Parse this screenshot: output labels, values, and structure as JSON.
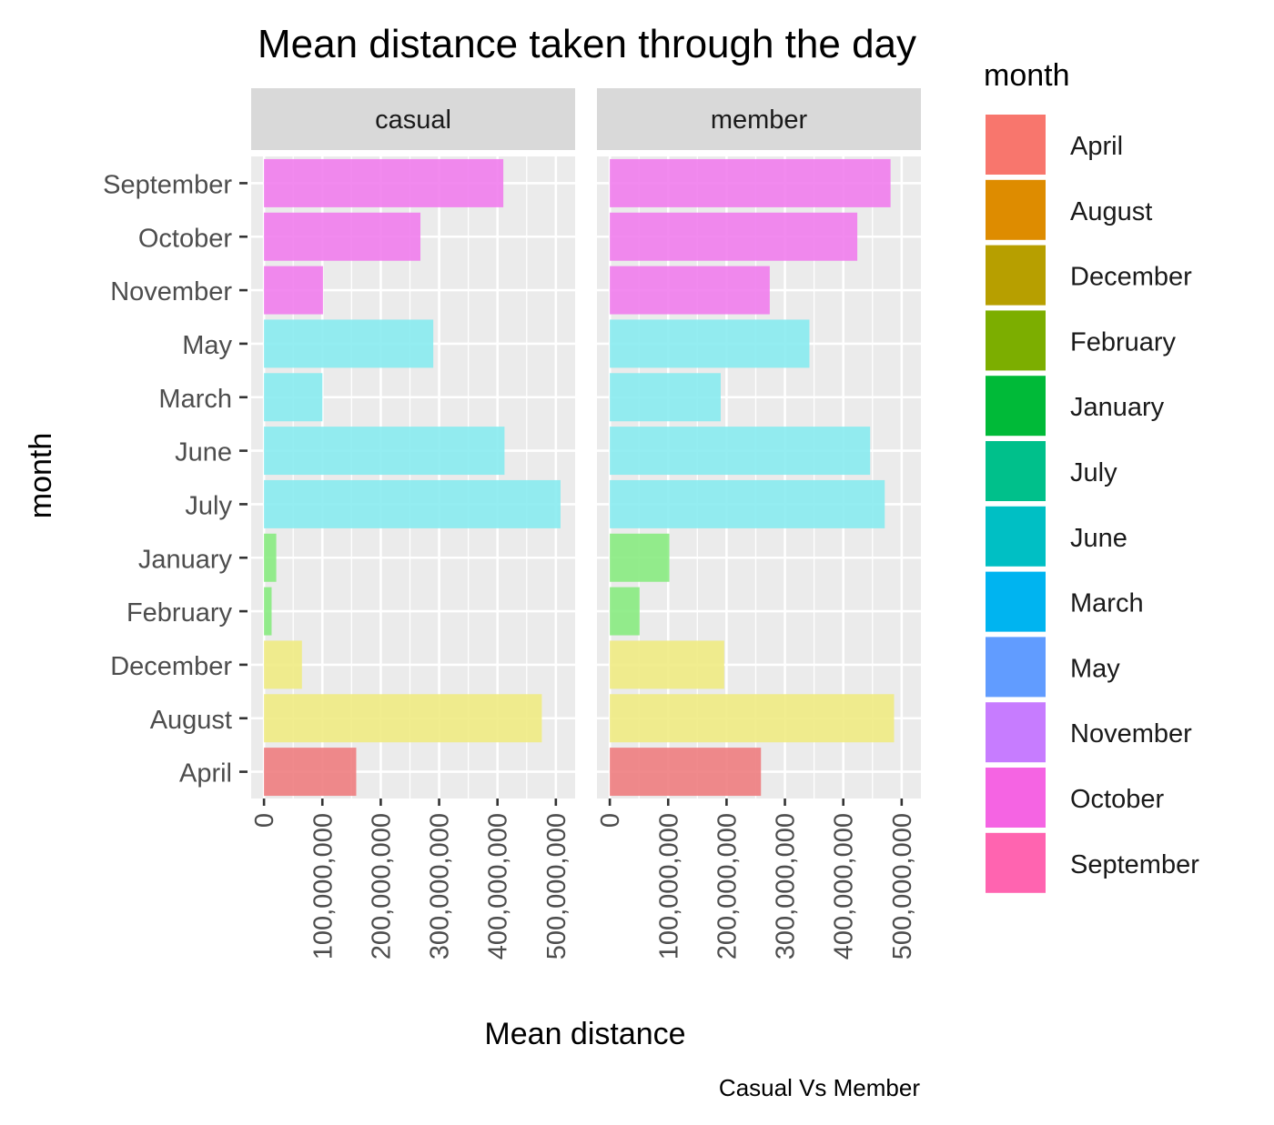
{
  "chart_data": {
    "type": "bar",
    "orientation": "horizontal",
    "title": "Mean distance taken through the day",
    "xlabel": "Mean distance",
    "ylabel": "month",
    "caption": "Casual Vs Member",
    "xlim": [
      -22000000,
      533000000
    ],
    "x_ticks": [
      0,
      100000000,
      200000000,
      300000000,
      400000000,
      500000000
    ],
    "x_tick_labels": [
      "0",
      "100,000,000",
      "200,000,000",
      "300,000,000",
      "400,000,000",
      "500,000,000"
    ],
    "grid": true,
    "legend": {
      "title": "month",
      "position": "right",
      "entries": [
        {
          "label": "April",
          "color": "#F8766D"
        },
        {
          "label": "August",
          "color": "#DE8C00"
        },
        {
          "label": "December",
          "color": "#B79F00"
        },
        {
          "label": "February",
          "color": "#7CAE00"
        },
        {
          "label": "January",
          "color": "#00BA38"
        },
        {
          "label": "July",
          "color": "#00C08B"
        },
        {
          "label": "June",
          "color": "#00BFC4"
        },
        {
          "label": "March",
          "color": "#00B4F0"
        },
        {
          "label": "May",
          "color": "#619CFF"
        },
        {
          "label": "November",
          "color": "#C77CFF"
        },
        {
          "label": "October",
          "color": "#F564E3"
        },
        {
          "label": "September",
          "color": "#FF64B0"
        }
      ]
    },
    "categories": [
      "September",
      "October",
      "November",
      "May",
      "March",
      "June",
      "July",
      "January",
      "February",
      "December",
      "August",
      "April"
    ],
    "bar_colors": [
      "#F07AED",
      "#F07AED",
      "#F07AED",
      "#85EBEF",
      "#85EBEF",
      "#85EBEF",
      "#85EBEF",
      "#85EA7D",
      "#85EA7D",
      "#EFEA80",
      "#EFEA80",
      "#EE7A7C"
    ],
    "panels": [
      {
        "name": "casual",
        "values": [
          410000000,
          268000000,
          101000000,
          290000000,
          100000000,
          412000000,
          508000000,
          21000000,
          13000000,
          65000000,
          476000000,
          158000000
        ]
      },
      {
        "name": "member",
        "values": [
          481000000,
          424000000,
          274000000,
          342000000,
          190000000,
          446000000,
          471000000,
          102000000,
          51000000,
          196000000,
          487000000,
          259000000
        ]
      }
    ]
  }
}
